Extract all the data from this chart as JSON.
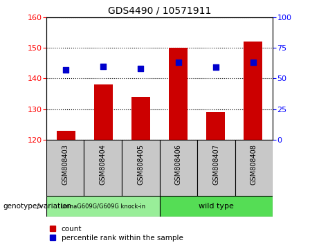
{
  "title": "GDS4490 / 10571911",
  "samples": [
    "GSM808403",
    "GSM808404",
    "GSM808405",
    "GSM808406",
    "GSM808407",
    "GSM808408"
  ],
  "count_values": [
    123,
    138,
    134,
    150,
    129,
    152
  ],
  "percentile_values": [
    57,
    60,
    58,
    63,
    59,
    63
  ],
  "ylim_left": [
    120,
    160
  ],
  "ylim_right": [
    0,
    100
  ],
  "yticks_left": [
    120,
    130,
    140,
    150,
    160
  ],
  "yticks_right": [
    0,
    25,
    50,
    75,
    100
  ],
  "bar_color": "#cc0000",
  "dot_color": "#0000cc",
  "group1_label": "LmnaG609G/G609G knock-in",
  "group2_label": "wild type",
  "group1_color": "#99ee99",
  "group2_color": "#55dd55",
  "xlabel_annotation": "genotype/variation",
  "legend_count": "count",
  "legend_percentile": "percentile rank within the sample",
  "bar_width": 0.5,
  "dot_size": 35
}
